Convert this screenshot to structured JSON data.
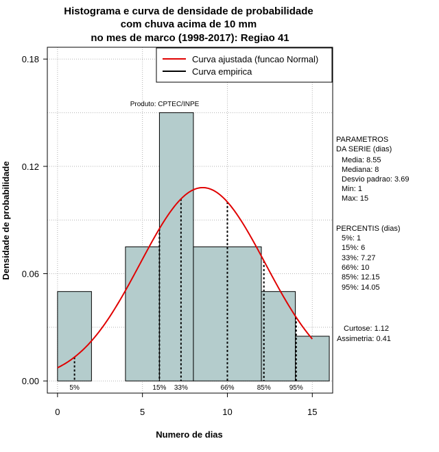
{
  "chart_data": {
    "type": "bar",
    "title_lines": [
      "Histograma e curva de densidade de probabilidade",
      "com chuva acima de 10 mm",
      "no mes de marco (1998-2017): Regiao 41"
    ],
    "xlabel": "Numero de dias",
    "ylabel": "Densidade de probabilidade",
    "xlim": [
      -0.6,
      16.2
    ],
    "ylim": [
      -0.0068,
      0.1866
    ],
    "x_ticks": [
      0,
      5,
      10,
      15
    ],
    "y_ticks": [
      0.0,
      0.06,
      0.12,
      0.18
    ],
    "y_tick_labels": [
      "0.00",
      "0.06",
      "0.12",
      "0.18"
    ],
    "grid_x": [
      0,
      5,
      10,
      15
    ],
    "grid_y": [
      0.0,
      0.03,
      0.06,
      0.09,
      0.12,
      0.15,
      0.18
    ],
    "bins": [
      {
        "x0": 0,
        "x1": 2,
        "density": 0.05
      },
      {
        "x0": 2,
        "x1": 4,
        "density": 0
      },
      {
        "x0": 4,
        "x1": 6,
        "density": 0.075
      },
      {
        "x0": 6,
        "x1": 8,
        "density": 0.15
      },
      {
        "x0": 8,
        "x1": 12,
        "density": 0.075
      },
      {
        "x0": 12,
        "x1": 14,
        "density": 0.05
      },
      {
        "x0": 14,
        "x1": 16,
        "density": 0.025
      }
    ],
    "bar_color": "#b4cccc",
    "curve_color": "#e00000",
    "normal_fit": {
      "mean": 8.55,
      "sd": 3.69,
      "x_from": 0,
      "x_to": 15
    },
    "percentile_markers": [
      {
        "label": "5%",
        "x": 1
      },
      {
        "label": "15%",
        "x": 6
      },
      {
        "label": "33%",
        "x": 7.27
      },
      {
        "label": "66%",
        "x": 10
      },
      {
        "label": "85%",
        "x": 12.15
      },
      {
        "label": "95%",
        "x": 14.05
      }
    ],
    "legend": [
      {
        "label": "Curva ajustada (funcao Normal)",
        "color": "#e00000"
      },
      {
        "label": "Curva empirica",
        "color": "#000000"
      }
    ],
    "legend_position": "top-right",
    "product_label": "Produto: CPTEC/INPE"
  },
  "side_panel": {
    "params_title": [
      "PARAMETROS",
      "DA SERIE (dias)"
    ],
    "params": [
      "Media: 8.55",
      "Mediana: 8",
      "Desvio padrao: 3.69",
      "Min: 1",
      "Max: 15"
    ],
    "percentis_title": "PERCENTIS (dias)",
    "percentis": [
      "5%: 1",
      "15%: 6",
      "33%: 7.27",
      "66%: 10",
      "85%: 12.15",
      "95%: 14.05"
    ],
    "curtose": "Curtose: 1.12",
    "assimetria": "Assimetria: 0.41"
  }
}
